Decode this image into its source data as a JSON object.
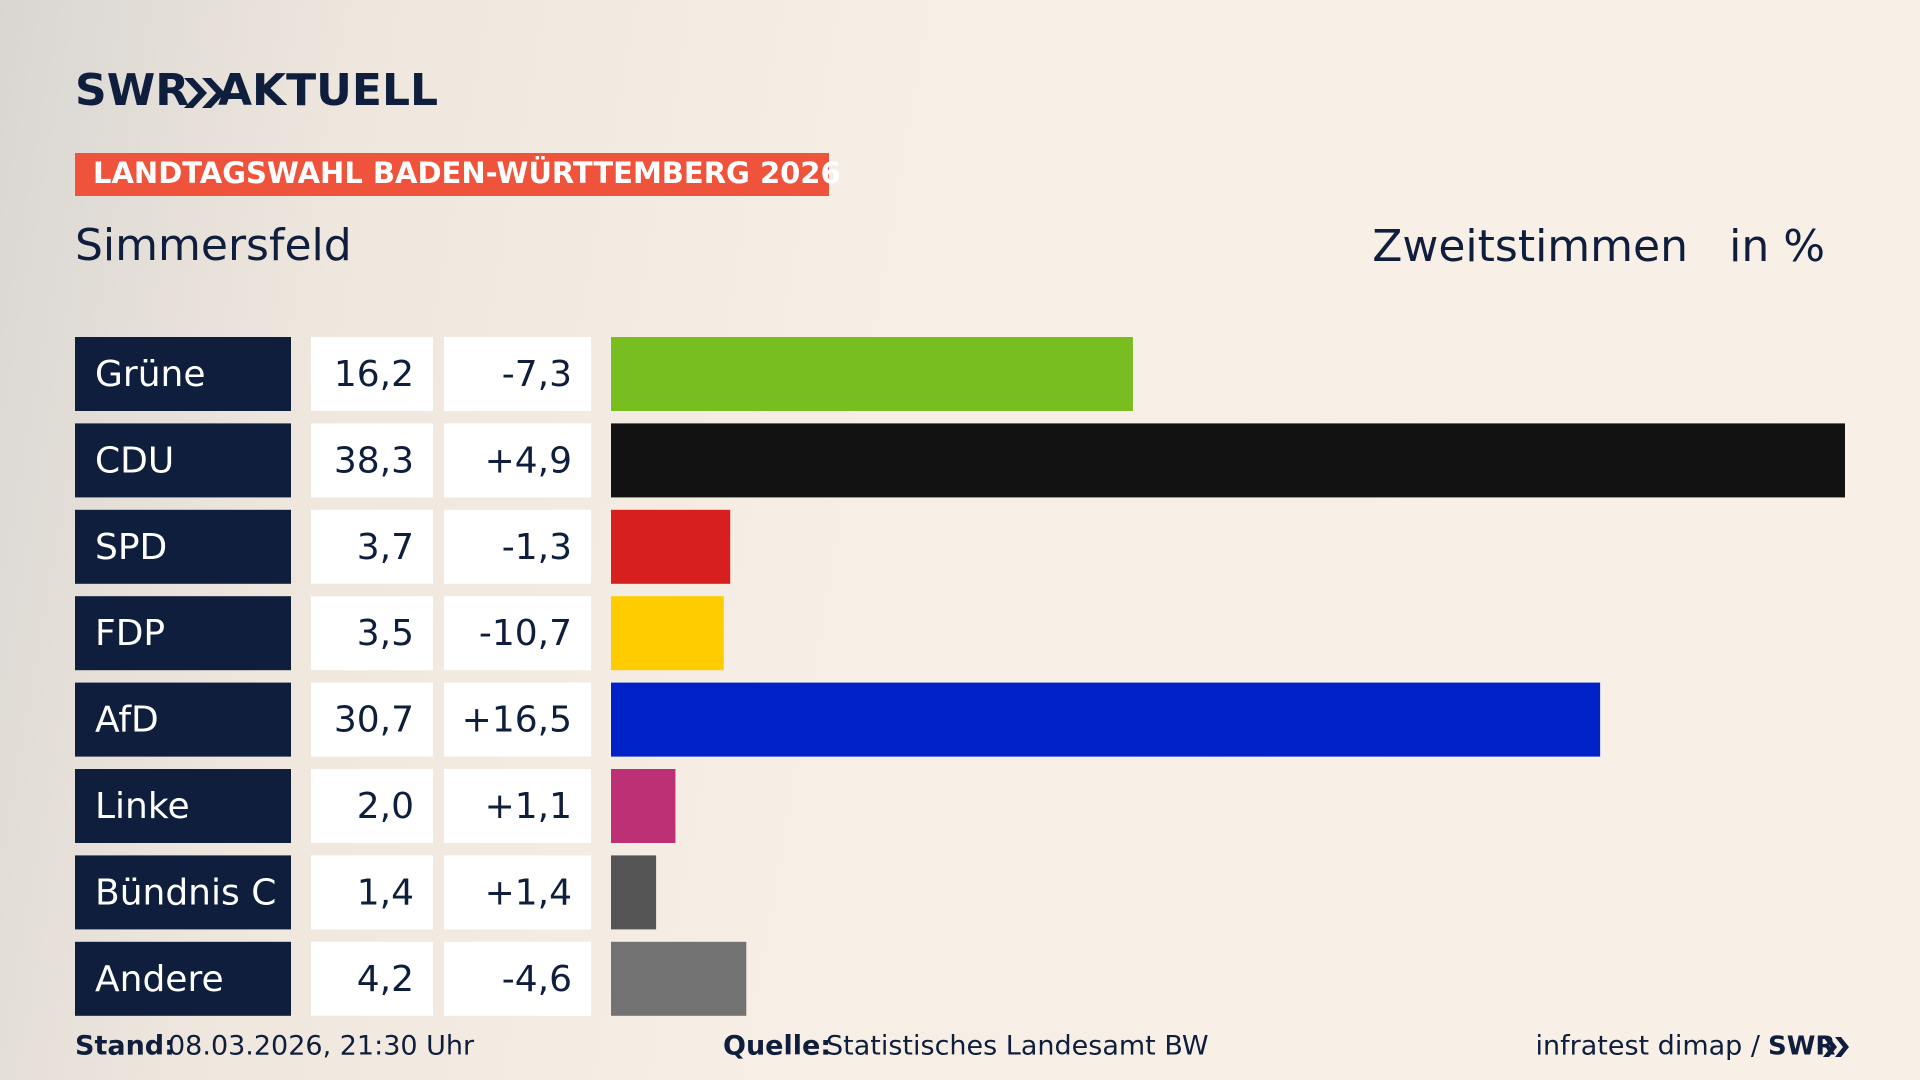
{
  "chart_data": {
    "type": "bar",
    "brand": "SWR",
    "brand_name": "AKTUELL",
    "banner": "LANDTAGSWAHL BADEN-WÜRTTEMBERG 2026",
    "title": "Simmersfeld",
    "measure": "Zweitstimmen",
    "unit": "in %",
    "categories": [
      "Grüne",
      "CDU",
      "SPD",
      "FDP",
      "AfD",
      "Linke",
      "Bündnis C",
      "Andere"
    ],
    "values": [
      16.2,
      38.3,
      3.7,
      3.5,
      30.7,
      2.0,
      1.4,
      4.2
    ],
    "value_labels": [
      "16,2",
      "38,3",
      "3,7",
      "3,5",
      "30,7",
      "2,0",
      "1,4",
      "4,2"
    ],
    "changes": [
      -7.3,
      4.9,
      -1.3,
      -10.7,
      16.5,
      1.1,
      1.4,
      -4.6
    ],
    "change_labels": [
      "-7,3",
      "+4,9",
      "-1,3",
      "-10,7",
      "+16,5",
      "+1,1",
      "+1,4",
      "-4,6"
    ],
    "colors": [
      "#78be20",
      "#121212",
      "#d71f1d",
      "#ffcc00",
      "#0021c7",
      "#be3075",
      "#555555",
      "#737373"
    ],
    "stand_label": "Stand:",
    "stand": "08.03.2026, 21:30 Uhr",
    "source_label": "Quelle:",
    "source": "Statistisches Landesamt BW",
    "credit": "infratest dimap /"
  }
}
